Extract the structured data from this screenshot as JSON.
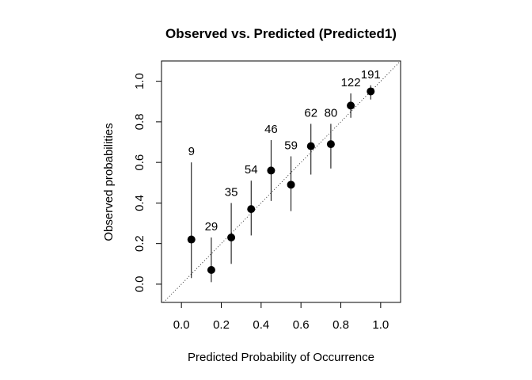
{
  "chart_data": {
    "type": "scatter",
    "title": "Observed vs. Predicted (Predicted1)",
    "xlabel": "Predicted Probability of Occurrence",
    "ylabel": "Observed probabilities",
    "xlim": [
      -0.1,
      1.1
    ],
    "ylim": [
      -0.09,
      1.1
    ],
    "xticks": [
      "0.0",
      "0.2",
      "0.4",
      "0.6",
      "0.8",
      "1.0"
    ],
    "yticks": [
      "0.0",
      "0.2",
      "0.4",
      "0.6",
      "0.8",
      "1.0"
    ],
    "reference_line": "y = x (dotted)",
    "grid": false,
    "points": [
      {
        "x": 0.05,
        "y": 0.22,
        "lower": 0.03,
        "upper": 0.6,
        "count": "9"
      },
      {
        "x": 0.15,
        "y": 0.07,
        "lower": 0.01,
        "upper": 0.23,
        "count": "29"
      },
      {
        "x": 0.25,
        "y": 0.23,
        "lower": 0.1,
        "upper": 0.4,
        "count": "35"
      },
      {
        "x": 0.35,
        "y": 0.37,
        "lower": 0.24,
        "upper": 0.51,
        "count": "54"
      },
      {
        "x": 0.45,
        "y": 0.56,
        "lower": 0.41,
        "upper": 0.71,
        "count": "46"
      },
      {
        "x": 0.55,
        "y": 0.49,
        "lower": 0.36,
        "upper": 0.63,
        "count": "59"
      },
      {
        "x": 0.65,
        "y": 0.68,
        "lower": 0.54,
        "upper": 0.79,
        "count": "62"
      },
      {
        "x": 0.75,
        "y": 0.69,
        "lower": 0.57,
        "upper": 0.79,
        "count": "80"
      },
      {
        "x": 0.85,
        "y": 0.88,
        "lower": 0.82,
        "upper": 0.94,
        "count": "122"
      },
      {
        "x": 0.95,
        "y": 0.95,
        "lower": 0.91,
        "upper": 0.98,
        "count": "191"
      }
    ]
  }
}
